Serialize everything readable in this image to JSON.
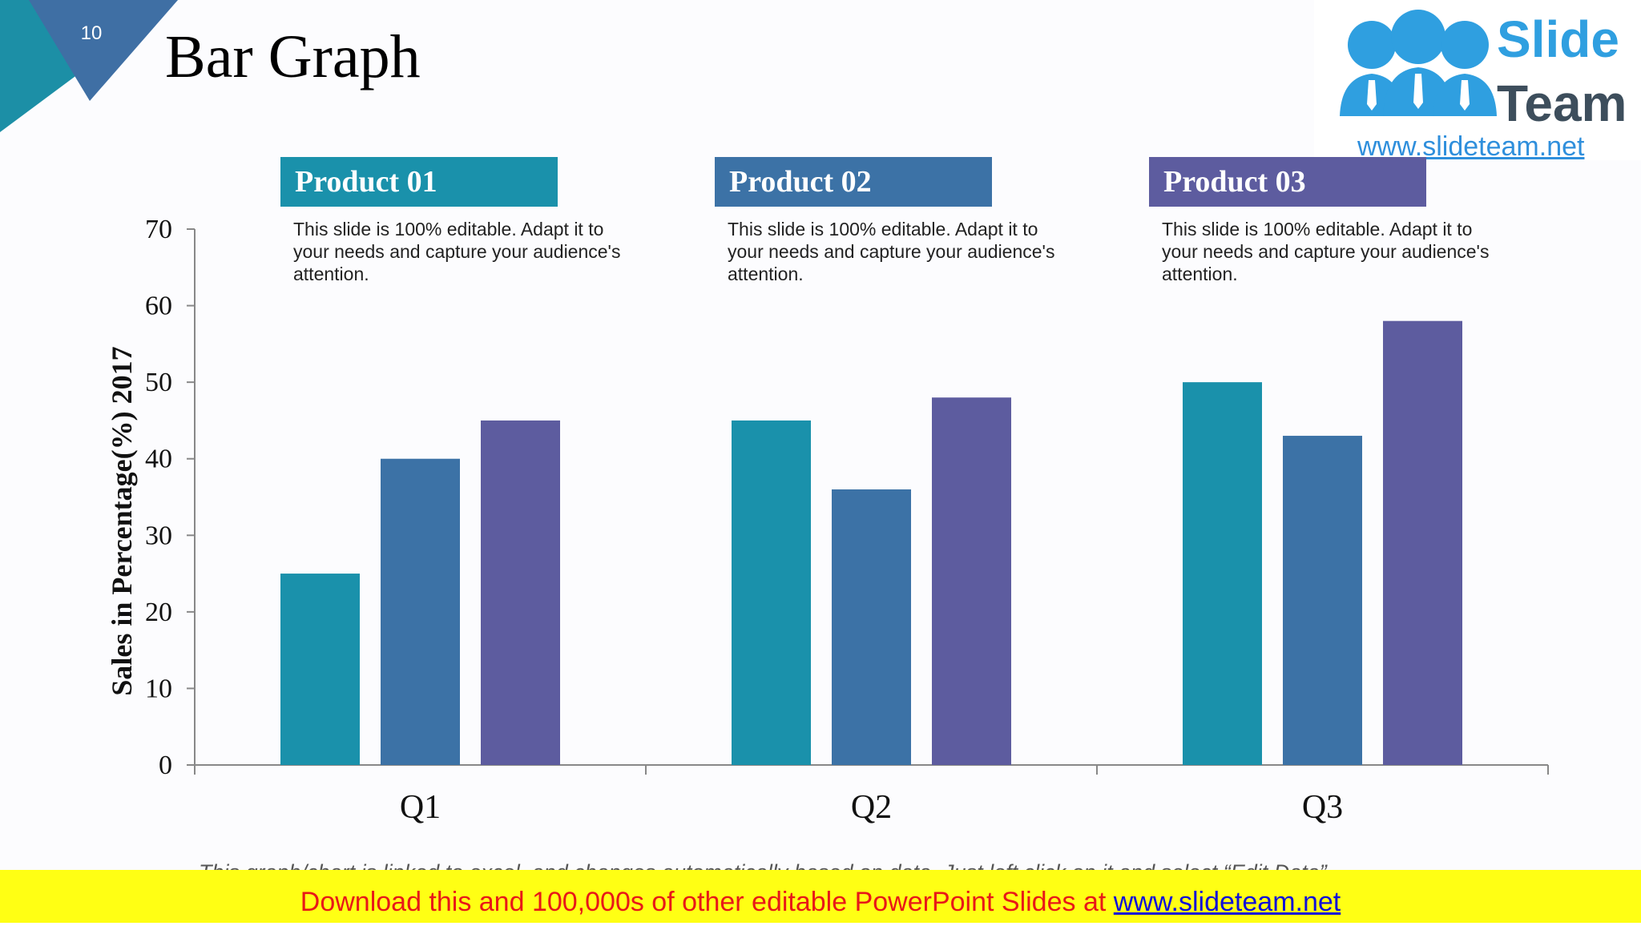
{
  "slide": {
    "number": "10",
    "title": "Bar Graph"
  },
  "logo": {
    "line1": "Slide",
    "line2": "Team",
    "url": "www.slideteam.net"
  },
  "products": [
    {
      "name": "Product 01",
      "description": "This slide is 100% editable. Adapt it to your needs and capture your audience's attention.",
      "color": "#1a91ab"
    },
    {
      "name": "Product 02",
      "description": "This slide is 100% editable. Adapt it to your needs and capture your audience's attention.",
      "color": "#3c72a6"
    },
    {
      "name": "Product 03",
      "description": "This slide is 100% editable. Adapt it to your needs and capture your audience's attention.",
      "color": "#5d5c9f"
    }
  ],
  "chart_data": {
    "type": "bar",
    "categories": [
      "Q1",
      "Q2",
      "Q3"
    ],
    "series": [
      {
        "name": "Product 01",
        "values": [
          25,
          45,
          50
        ],
        "color": "#1a91ab"
      },
      {
        "name": "Product 02",
        "values": [
          40,
          36,
          43
        ],
        "color": "#3c72a6"
      },
      {
        "name": "Product 03",
        "values": [
          45,
          48,
          58
        ],
        "color": "#5d5c9f"
      }
    ],
    "ylabel": "Sales in Percentage(%) 2017",
    "ylim": [
      0,
      70
    ],
    "yticks": [
      0,
      10,
      20,
      30,
      40,
      50,
      60,
      70
    ],
    "grid": false
  },
  "caption": "This graph/chart is linked to excel, and changes automatically based on data. Just left click on it and select “Edit Data”.",
  "banner": {
    "text": "Download this and 100,000s of other editable PowerPoint Slides at ",
    "link": "www.slideteam.net"
  }
}
